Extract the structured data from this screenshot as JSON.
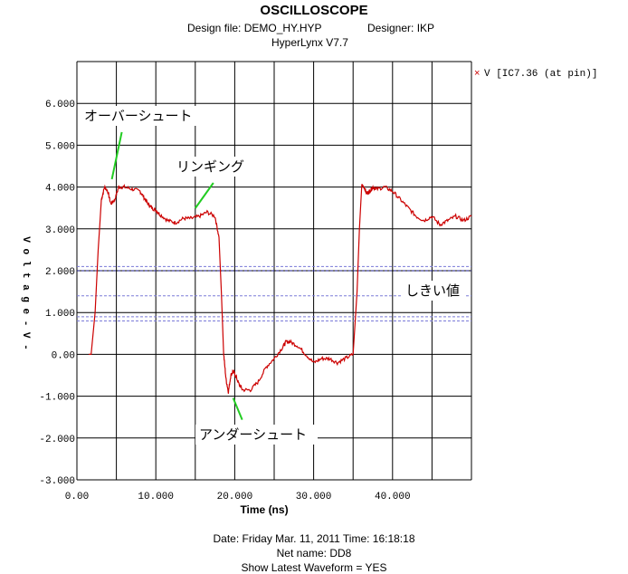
{
  "header": {
    "title": "OSCILLOSCOPE",
    "design_file": "Design file: DEMO_HY.HYP",
    "designer": "Designer: IKP",
    "version": "HyperLynx V7.7"
  },
  "footer": {
    "date": "Date: Friday Mar. 11, 2011   Time: 16:18:18",
    "net": "Net name: DD8",
    "show_latest": "Show Latest Waveform = YES"
  },
  "chart_data": {
    "type": "line",
    "xlabel": "Time  (ns)",
    "ylabel": "V o l t a g e - V -",
    "xlim": [
      0,
      50
    ],
    "ylim": [
      -3,
      7
    ],
    "x_ticks": [
      "0.00",
      "10.000",
      "20.000",
      "30.000",
      "40.000"
    ],
    "y_ticks": [
      "-3.000",
      "-2.000",
      "-1.000",
      "0.00",
      "1.000",
      "2.000",
      "3.000",
      "4.000",
      "5.000",
      "6.000"
    ],
    "grid": true,
    "legend": {
      "placement": "top-right",
      "entries": [
        "V [IC7.36 (at pin)]"
      ]
    },
    "series": [
      {
        "name": "V [IC7.36 (at pin)]",
        "color": "#cc0000",
        "x": [
          1.5,
          1.8,
          2.3,
          2.7,
          3.1,
          3.5,
          3.9,
          4.3,
          4.8,
          5.3,
          6.0,
          7.0,
          8.0,
          8.5,
          9.0,
          9.5,
          10.0,
          10.5,
          11.5,
          12.5,
          13.5,
          14.5,
          15.5,
          16.5,
          17.5,
          18.0,
          18.3,
          18.6,
          18.9,
          19.2,
          19.5,
          19.8,
          20.1,
          20.5,
          21.0,
          22.0,
          23.0,
          24.0,
          25.0,
          26.0,
          26.5,
          27.0,
          28.0,
          29.0,
          30.0,
          31.0,
          32.0,
          33.0,
          34.0,
          35.0,
          35.5,
          35.8,
          36.1,
          36.4,
          36.7,
          37.1,
          37.5,
          38.0,
          39.0,
          40.0,
          41.0,
          42.0,
          43.0,
          44.0,
          45.0,
          46.0,
          47.0,
          48.0,
          49.0,
          50.0
        ],
        "y": [
          0.0,
          0.0,
          1.0,
          2.5,
          3.7,
          4.0,
          3.9,
          3.6,
          3.7,
          4.0,
          4.0,
          3.95,
          3.9,
          3.75,
          3.6,
          3.5,
          3.45,
          3.35,
          3.2,
          3.15,
          3.25,
          3.25,
          3.3,
          3.4,
          3.3,
          2.8,
          1.5,
          0.0,
          -0.6,
          -0.9,
          -0.5,
          -0.4,
          -0.5,
          -0.7,
          -0.85,
          -0.85,
          -0.65,
          -0.3,
          -0.1,
          0.15,
          0.3,
          0.3,
          0.2,
          0.0,
          -0.2,
          -0.1,
          -0.1,
          -0.2,
          -0.1,
          0.0,
          1.5,
          3.0,
          4.05,
          4.0,
          3.85,
          3.9,
          4.0,
          3.95,
          4.0,
          3.9,
          3.7,
          3.5,
          3.3,
          3.2,
          3.3,
          3.1,
          3.2,
          3.3,
          3.2,
          3.3
        ]
      }
    ],
    "threshold_lines": [
      2.1,
      2.0,
      1.4,
      0.9,
      0.8
    ],
    "annotations": [
      {
        "text": "オーバーシュート",
        "x": 5.0,
        "y": 4.1
      },
      {
        "text": "リンギング",
        "x": 15.0,
        "y": 3.45
      },
      {
        "text": "しきい値",
        "x": 46.0,
        "y": 1.5
      },
      {
        "text": "アンダーシュート",
        "x": 19.8,
        "y": -1.0
      }
    ]
  }
}
